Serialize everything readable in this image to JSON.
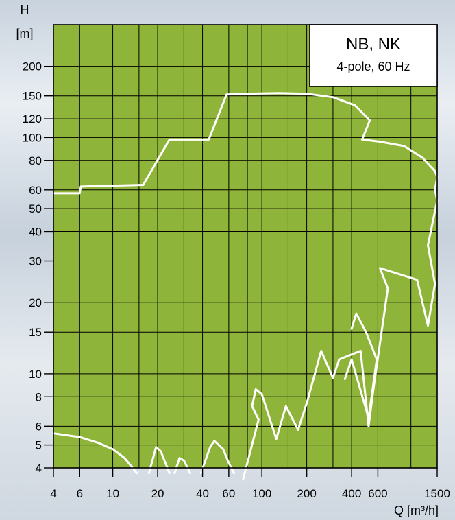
{
  "chart_data": {
    "type": "line",
    "title": "NB, NK",
    "subtitle": "4-pole, 60 Hz",
    "xlabel": "Q [m³/h]",
    "ylabel_top": "H",
    "ylabel_bottom": "[m]",
    "x_scale": "log",
    "y_scale": "log",
    "xlim": [
      4,
      1500
    ],
    "ylim": [
      4,
      300
    ],
    "grid": true,
    "legend": "top-right",
    "x_ticks": [
      4,
      6,
      10,
      20,
      40,
      60,
      100,
      200,
      400,
      600,
      1500
    ],
    "x_tick_labels": [
      "4",
      "6",
      "10",
      "20",
      "40",
      "60",
      "100",
      "200",
      "400",
      "600",
      "1500"
    ],
    "y_ticks": [
      4,
      5,
      6,
      8,
      10,
      15,
      20,
      30,
      40,
      50,
      60,
      80,
      100,
      120,
      150,
      200
    ],
    "y_tick_labels": [
      "4",
      "5",
      "6",
      "8",
      "10",
      "15",
      "20",
      "30",
      "40",
      "50",
      "60",
      "80",
      "100",
      "120",
      "150",
      "200"
    ],
    "x_grid": [
      4,
      6,
      10,
      15,
      20,
      30,
      40,
      60,
      80,
      100,
      150,
      200,
      300,
      400,
      600,
      1000,
      1500
    ],
    "y_grid": [
      4,
      5,
      6,
      8,
      10,
      15,
      20,
      30,
      40,
      50,
      60,
      80,
      100,
      120,
      150,
      200,
      300
    ],
    "colors": {
      "plot_background": "#8fb43a",
      "grid": "#000000",
      "curve": "#ffffff",
      "legend_background": "#ffffff"
    },
    "series": [
      {
        "points": [
          [
            4,
            58
          ],
          [
            6,
            58
          ],
          [
            6.1,
            62
          ],
          [
            16,
            63
          ],
          [
            24,
            98
          ],
          [
            44,
            98
          ],
          [
            58,
            152
          ],
          [
            75,
            153
          ],
          [
            130,
            154
          ],
          [
            200,
            153
          ],
          [
            300,
            148
          ],
          [
            420,
            137
          ],
          [
            530,
            118
          ],
          [
            470,
            98
          ],
          [
            620,
            96
          ],
          [
            900,
            92
          ],
          [
            1200,
            82
          ],
          [
            1450,
            72
          ],
          [
            1500,
            68
          ],
          [
            1450,
            60
          ],
          [
            1500,
            54
          ],
          [
            1300,
            35
          ],
          [
            1450,
            24
          ],
          [
            1300,
            16
          ],
          [
            1100,
            25
          ],
          [
            620,
            28
          ],
          [
            700,
            23
          ],
          [
            560,
            8.6
          ],
          [
            520,
            6
          ],
          [
            460,
            12.5
          ],
          [
            330,
            11.5
          ],
          [
            300,
            9.6
          ],
          [
            250,
            12.5
          ],
          [
            200,
            7.5
          ],
          [
            175,
            5.8
          ],
          [
            145,
            7.3
          ],
          [
            125,
            5.3
          ],
          [
            100,
            8.2
          ],
          [
            91,
            8.6
          ],
          [
            86,
            7.3
          ],
          [
            95,
            6.4
          ],
          [
            75,
            3.6
          ]
        ]
      },
      {
        "points": [
          [
            400,
            15.5
          ],
          [
            430,
            18
          ],
          [
            500,
            15
          ],
          [
            590,
            11.5
          ],
          [
            520,
            6.5
          ],
          [
            400,
            11.5
          ],
          [
            360,
            9.5
          ]
        ]
      },
      {
        "points": [
          [
            4,
            5.6
          ],
          [
            6,
            5.4
          ],
          [
            8,
            5.1
          ],
          [
            10,
            4.8
          ],
          [
            12,
            4.4
          ],
          [
            14.5,
            3.8
          ]
        ]
      },
      {
        "points": [
          [
            17.5,
            3.8
          ],
          [
            19.5,
            4.9
          ],
          [
            21,
            4.7
          ],
          [
            24,
            3.8
          ]
        ]
      },
      {
        "points": [
          [
            26,
            3.8
          ],
          [
            28,
            4.4
          ],
          [
            30,
            4.3
          ],
          [
            33,
            3.8
          ]
        ]
      },
      {
        "points": [
          [
            39,
            3.8
          ],
          [
            45,
            4.9
          ],
          [
            48,
            5.2
          ],
          [
            55,
            4.8
          ],
          [
            60,
            4.2
          ],
          [
            65,
            3.8
          ]
        ]
      }
    ]
  }
}
